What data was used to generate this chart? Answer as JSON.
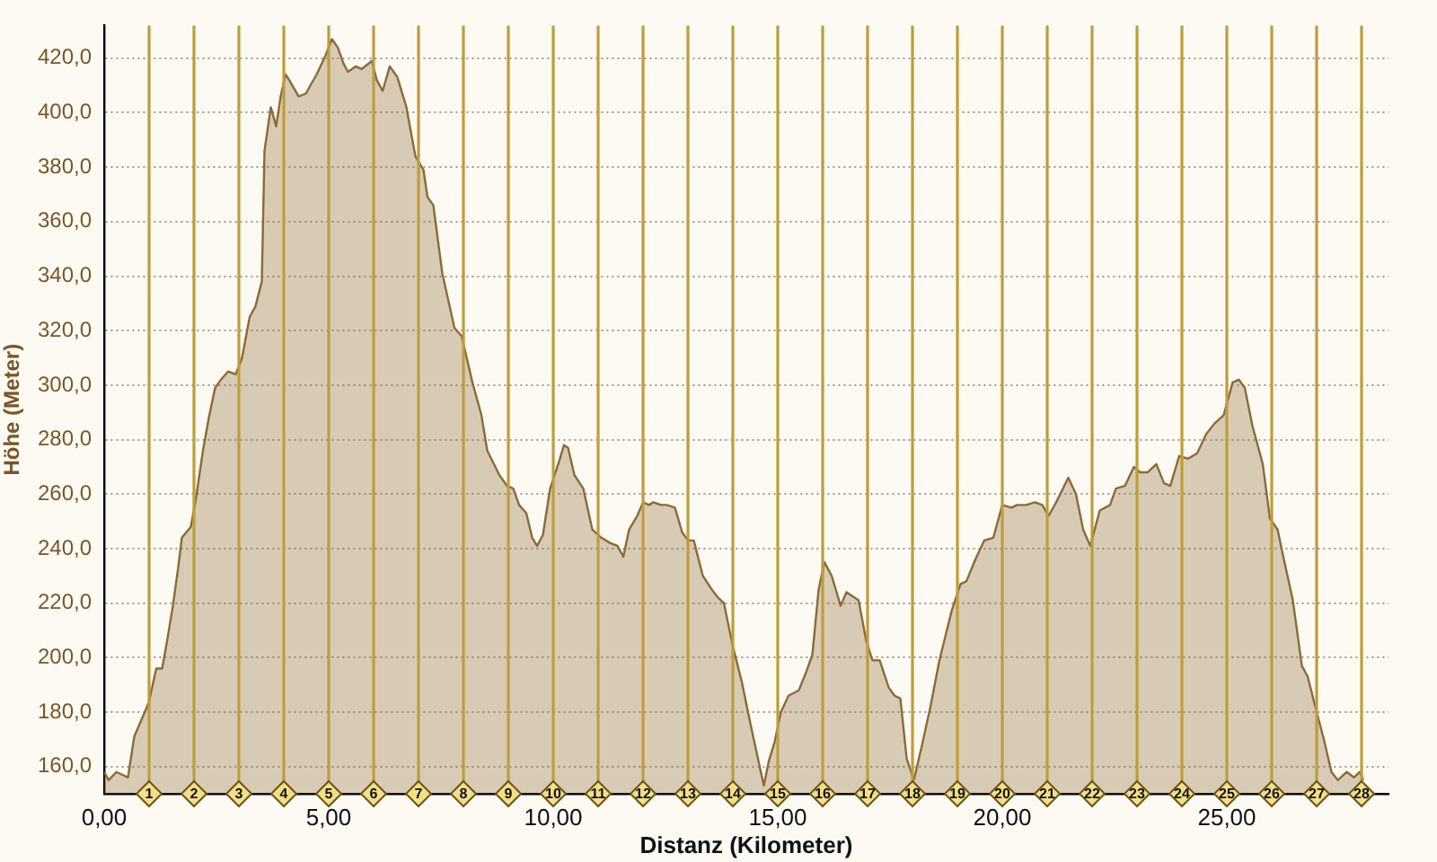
{
  "chart_data": {
    "type": "area",
    "xlabel": "Distanz (Kilometer)",
    "ylabel": "Höhe (Meter)",
    "x": [
      0,
      0.1,
      0.27,
      0.4,
      0.53,
      0.67,
      0.93,
      1.0,
      1.16,
      1.29,
      1.4,
      1.53,
      1.64,
      1.73,
      1.93,
      2.04,
      2.2,
      2.33,
      2.47,
      2.6,
      2.76,
      2.93,
      3.07,
      3.24,
      3.37,
      3.51,
      3.57,
      3.71,
      3.83,
      3.93,
      4.04,
      4.12,
      4.33,
      4.49,
      4.73,
      4.93,
      5.07,
      5.2,
      5.33,
      5.43,
      5.6,
      5.73,
      5.96,
      6.07,
      6.2,
      6.36,
      6.53,
      6.73,
      6.93,
      7.11,
      7.2,
      7.33,
      7.53,
      7.8,
      7.96,
      8.2,
      8.4,
      8.53,
      8.8,
      8.97,
      9.11,
      9.24,
      9.4,
      9.53,
      9.64,
      9.77,
      9.93,
      10.13,
      10.24,
      10.33,
      10.47,
      10.67,
      10.87,
      11.07,
      11.27,
      11.43,
      11.56,
      11.69,
      11.87,
      12.0,
      12.13,
      12.23,
      12.4,
      12.53,
      12.71,
      12.87,
      13.0,
      13.13,
      13.33,
      13.53,
      13.67,
      13.8,
      14.0,
      14.2,
      14.4,
      14.57,
      14.69,
      14.8,
      14.93,
      15.07,
      15.24,
      15.47,
      15.64,
      15.77,
      15.91,
      16.04,
      16.2,
      16.4,
      16.53,
      16.8,
      16.97,
      17.11,
      17.27,
      17.47,
      17.6,
      17.73,
      17.87,
      18.03,
      18.2,
      18.4,
      18.6,
      18.87,
      19.07,
      19.2,
      19.4,
      19.6,
      19.8,
      20.0,
      20.2,
      20.33,
      20.53,
      20.73,
      20.89,
      21.03,
      21.2,
      21.47,
      21.64,
      21.8,
      21.96,
      22.17,
      22.4,
      22.53,
      22.73,
      22.93,
      23.07,
      23.24,
      23.43,
      23.6,
      23.74,
      23.94,
      24.14,
      24.34,
      24.54,
      24.73,
      24.93,
      25.13,
      25.27,
      25.4,
      25.57,
      25.8,
      25.96,
      26.13,
      26.27,
      26.47,
      26.67,
      26.8,
      27.0,
      27.16,
      27.33,
      27.47,
      27.67,
      27.83,
      27.96,
      28.04
    ],
    "series": [
      {
        "color": "#8b6b35",
        "values": [
          158,
          155,
          158,
          157,
          156,
          171,
          181,
          184,
          196,
          196,
          206,
          219,
          232,
          244,
          248,
          258,
          276,
          288,
          299,
          302,
          305,
          304,
          310,
          325,
          329,
          338,
          386,
          402,
          395,
          406,
          414,
          412,
          406,
          407,
          414,
          421,
          427,
          424,
          418,
          415,
          417,
          416,
          419,
          412,
          408,
          417,
          413,
          402,
          384,
          379,
          369,
          366,
          341,
          321,
          318,
          301,
          289,
          276,
          267,
          263,
          262,
          256,
          253,
          244,
          241,
          245,
          262,
          272,
          278,
          277,
          267,
          262,
          247,
          244,
          242,
          241,
          237,
          247,
          252,
          257,
          256,
          257,
          256,
          256,
          255,
          246,
          243,
          243,
          230,
          225,
          222,
          220,
          204,
          191,
          175,
          162,
          153,
          162,
          169,
          180,
          186,
          188,
          195,
          201,
          225,
          235,
          230,
          219,
          224,
          221,
          206,
          199,
          199,
          189,
          186,
          185,
          163,
          155,
          167,
          182,
          199,
          217,
          227,
          228,
          236,
          243,
          244,
          256,
          255,
          256,
          256,
          257,
          256,
          252,
          257,
          266,
          260,
          247,
          241,
          254,
          256,
          262,
          263,
          270,
          268,
          268,
          271,
          264,
          263,
          274,
          273,
          275,
          282,
          286,
          289,
          301,
          302,
          299,
          285,
          271,
          251,
          247,
          236,
          221,
          197,
          193,
          180,
          170,
          158,
          155,
          158,
          156,
          158,
          155
        ]
      }
    ],
    "xlim": [
      0,
      28.6
    ],
    "xticks": [
      {
        "value": 0,
        "label": "0,00"
      },
      {
        "value": 5,
        "label": "5,00"
      },
      {
        "value": 10,
        "label": "10,00"
      },
      {
        "value": 15,
        "label": "15,00"
      },
      {
        "value": 20,
        "label": "20,00"
      },
      {
        "value": 25,
        "label": "25,00"
      }
    ],
    "ylim": [
      150,
      432
    ],
    "yticks": [
      {
        "value": 160,
        "label": "160,0"
      },
      {
        "value": 180,
        "label": "180,0"
      },
      {
        "value": 200,
        "label": "200,0"
      },
      {
        "value": 220,
        "label": "220,0"
      },
      {
        "value": 240,
        "label": "240,0"
      },
      {
        "value": 260,
        "label": "260,0"
      },
      {
        "value": 280,
        "label": "280,0"
      },
      {
        "value": 300,
        "label": "300,0"
      },
      {
        "value": 320,
        "label": "320,0"
      },
      {
        "value": 340,
        "label": "340,0"
      },
      {
        "value": 360,
        "label": "360,0"
      },
      {
        "value": 380,
        "label": "380,0"
      },
      {
        "value": 400,
        "label": "400,0"
      },
      {
        "value": 420,
        "label": "420,0"
      }
    ],
    "grid": "y",
    "ref_lines": [
      {
        "axis": "x",
        "value": 1,
        "label": "1",
        "color": "#bf9d3a"
      },
      {
        "axis": "x",
        "value": 2,
        "label": "2",
        "color": "#bf9d3a"
      },
      {
        "axis": "x",
        "value": 3,
        "label": "3",
        "color": "#bf9d3a"
      },
      {
        "axis": "x",
        "value": 4,
        "label": "4",
        "color": "#bf9d3a"
      },
      {
        "axis": "x",
        "value": 5,
        "label": "5",
        "color": "#bf9d3a"
      },
      {
        "axis": "x",
        "value": 6,
        "label": "6",
        "color": "#bf9d3a"
      },
      {
        "axis": "x",
        "value": 7,
        "label": "7",
        "color": "#bf9d3a"
      },
      {
        "axis": "x",
        "value": 8,
        "label": "8",
        "color": "#bf9d3a"
      },
      {
        "axis": "x",
        "value": 9,
        "label": "9",
        "color": "#bf9d3a"
      },
      {
        "axis": "x",
        "value": 10,
        "label": "10",
        "color": "#bf9d3a"
      },
      {
        "axis": "x",
        "value": 11,
        "label": "11",
        "color": "#bf9d3a"
      },
      {
        "axis": "x",
        "value": 12,
        "label": "12",
        "color": "#bf9d3a"
      },
      {
        "axis": "x",
        "value": 13,
        "label": "13",
        "color": "#bf9d3a"
      },
      {
        "axis": "x",
        "value": 14,
        "label": "14",
        "color": "#bf9d3a"
      },
      {
        "axis": "x",
        "value": 15,
        "label": "15",
        "color": "#bf9d3a"
      },
      {
        "axis": "x",
        "value": 16,
        "label": "16",
        "color": "#bf9d3a"
      },
      {
        "axis": "x",
        "value": 17,
        "label": "17",
        "color": "#bf9d3a"
      },
      {
        "axis": "x",
        "value": 18,
        "label": "18",
        "color": "#bf9d3a"
      },
      {
        "axis": "x",
        "value": 19,
        "label": "19",
        "color": "#bf9d3a"
      },
      {
        "axis": "x",
        "value": 20,
        "label": "20",
        "color": "#bf9d3a"
      },
      {
        "axis": "x",
        "value": 21,
        "label": "21",
        "color": "#bf9d3a"
      },
      {
        "axis": "x",
        "value": 22,
        "label": "22",
        "color": "#bf9d3a"
      },
      {
        "axis": "x",
        "value": 23,
        "label": "23",
        "color": "#bf9d3a"
      },
      {
        "axis": "x",
        "value": 24,
        "label": "24",
        "color": "#bf9d3a"
      },
      {
        "axis": "x",
        "value": 25,
        "label": "25",
        "color": "#bf9d3a"
      },
      {
        "axis": "x",
        "value": 26,
        "label": "26",
        "color": "#bf9d3a"
      },
      {
        "axis": "x",
        "value": 27,
        "label": "27",
        "color": "#bf9d3a"
      },
      {
        "axis": "x",
        "value": 28,
        "label": "28",
        "color": "#bf9d3a"
      }
    ]
  }
}
